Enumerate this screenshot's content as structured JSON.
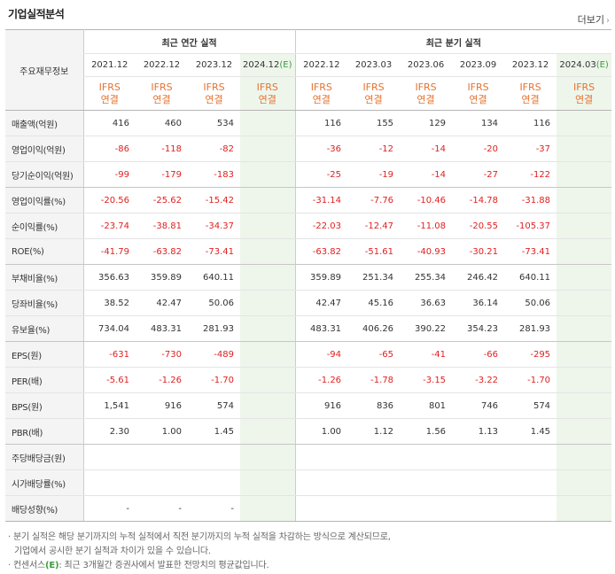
{
  "title": "기업실적분석",
  "more_label": "더보기",
  "header": {
    "row_label": "주요재무정보",
    "groups": [
      {
        "label": "최근 연간 실적"
      },
      {
        "label": "최근 분기 실적"
      }
    ],
    "periods": [
      "2021.12",
      "2022.12",
      "2023.12",
      "2024.12",
      "2022.12",
      "2023.03",
      "2023.06",
      "2023.09",
      "2023.12",
      "2024.03"
    ],
    "estimate_suffix": "(E)",
    "ifrs_top": "IFRS",
    "ifrs_bottom": "연결"
  },
  "rows": [
    {
      "label": "매출액(억원)",
      "values": [
        "416",
        "460",
        "534",
        "",
        "116",
        "155",
        "129",
        "134",
        "116",
        ""
      ]
    },
    {
      "label": "영업이익(억원)",
      "values": [
        "-86",
        "-118",
        "-82",
        "",
        "-36",
        "-12",
        "-14",
        "-20",
        "-37",
        ""
      ]
    },
    {
      "label": "당기순이익(억원)",
      "values": [
        "-99",
        "-179",
        "-183",
        "",
        "-25",
        "-19",
        "-14",
        "-27",
        "-122",
        ""
      ]
    },
    {
      "label": "영업이익률(%)",
      "values": [
        "-20.56",
        "-25.62",
        "-15.42",
        "",
        "-31.14",
        "-7.76",
        "-10.46",
        "-14.78",
        "-31.88",
        ""
      ]
    },
    {
      "label": "순이익률(%)",
      "values": [
        "-23.74",
        "-38.81",
        "-34.37",
        "",
        "-22.03",
        "-12.47",
        "-11.08",
        "-20.55",
        "-105.37",
        ""
      ]
    },
    {
      "label": "ROE(%)",
      "values": [
        "-41.79",
        "-63.82",
        "-73.41",
        "",
        "-63.82",
        "-51.61",
        "-40.93",
        "-30.21",
        "-73.41",
        ""
      ]
    },
    {
      "label": "부채비율(%)",
      "values": [
        "356.63",
        "359.89",
        "640.11",
        "",
        "359.89",
        "251.34",
        "255.34",
        "246.42",
        "640.11",
        ""
      ]
    },
    {
      "label": "당좌비율(%)",
      "values": [
        "38.52",
        "42.47",
        "50.06",
        "",
        "42.47",
        "45.16",
        "36.63",
        "36.14",
        "50.06",
        ""
      ]
    },
    {
      "label": "유보율(%)",
      "values": [
        "734.04",
        "483.31",
        "281.93",
        "",
        "483.31",
        "406.26",
        "390.22",
        "354.23",
        "281.93",
        ""
      ]
    },
    {
      "label": "EPS(원)",
      "values": [
        "-631",
        "-730",
        "-489",
        "",
        "-94",
        "-65",
        "-41",
        "-66",
        "-295",
        ""
      ]
    },
    {
      "label": "PER(배)",
      "values": [
        "-5.61",
        "-1.26",
        "-1.70",
        "",
        "-1.26",
        "-1.78",
        "-3.15",
        "-3.22",
        "-1.70",
        ""
      ]
    },
    {
      "label": "BPS(원)",
      "values": [
        "1,541",
        "916",
        "574",
        "",
        "916",
        "836",
        "801",
        "746",
        "574",
        ""
      ]
    },
    {
      "label": "PBR(배)",
      "values": [
        "2.30",
        "1.00",
        "1.45",
        "",
        "1.00",
        "1.12",
        "1.56",
        "1.13",
        "1.45",
        ""
      ]
    },
    {
      "label": "주당배당금(원)",
      "values": [
        "",
        "",
        "",
        "",
        "",
        "",
        "",
        "",
        "",
        ""
      ]
    },
    {
      "label": "시가배당률(%)",
      "values": [
        "",
        "",
        "",
        "",
        "",
        "",
        "",
        "",
        "",
        ""
      ]
    },
    {
      "label": "배당성향(%)",
      "values": [
        "-",
        "-",
        "-",
        "",
        "",
        "",
        "",
        "",
        "",
        ""
      ]
    }
  ],
  "notes": {
    "line1": "· 분기 실적은 해당 분기까지의 누적 실적에서 직전 분기까지의 누적 실적을 차감하는 방식으로 계산되므로,",
    "line2": "기업에서 공시한 분기 실적과 차이가 있을 수 있습니다.",
    "line3_prefix": "· 컨센서스",
    "line3_mark": "(E)",
    "line3_suffix": ": 최근 3개월간 증권사에서 발표한 전망치의 평균값입니다."
  },
  "colors": {
    "negative": "#e02020",
    "ifrs": "#e5722f",
    "estimate_bg": "#eef6ec",
    "estimate_mark": "#3a9d3a"
  }
}
